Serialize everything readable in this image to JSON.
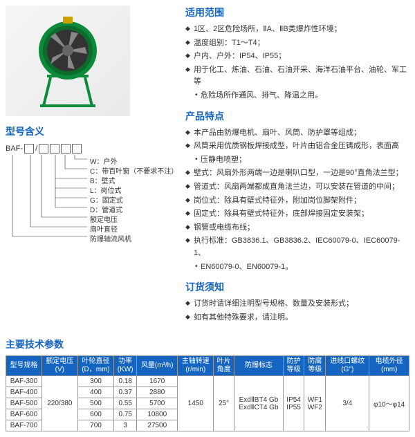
{
  "sections": {
    "scope": {
      "title": "适用范围",
      "items": [
        {
          "t": "1区、2区危险场所，ⅡA、ⅡB类爆炸性环境；",
          "sub": false
        },
        {
          "t": "温度组别：T1～T4；",
          "sub": false
        },
        {
          "t": "户内、户外：IP54、IP55；",
          "sub": false
        },
        {
          "t": "用于化工、炼油、石油、石油开采、海洋石油平台、油轮、军工等",
          "sub": false
        },
        {
          "t": "危险场所作通风、排气、降温之用。",
          "sub": true
        }
      ]
    },
    "features": {
      "title": "产品特点",
      "items": [
        {
          "t": "本产品由防爆电机、扇叶、风筒、防护罩等组成；",
          "sub": false
        },
        {
          "t": "风筒采用优质钢板焊接成型，叶片由铝合金压铸成形，表面高",
          "sub": false
        },
        {
          "t": "压静电喷塑；",
          "sub": true
        },
        {
          "t": "壁式：风扇外形两端一边是喇叭口型，一边是90°直角法兰型；",
          "sub": false
        },
        {
          "t": "管道式：风扇两端都成直角法兰边，可以安装在管道的中间；",
          "sub": false
        },
        {
          "t": "岗位式：除具有壁式特征外，附加岗位脚架附件；",
          "sub": false
        },
        {
          "t": "固定式：除具有壁式特征外，底部焊接固定安装架；",
          "sub": false
        },
        {
          "t": "钢管或电缆布线；",
          "sub": false
        },
        {
          "t": "执行标准：GB3836.1、GB3836.2、IEC60079-0、IEC60079-1、",
          "sub": false
        },
        {
          "t": "EN60079-0、EN60079-1。",
          "sub": true
        }
      ]
    },
    "order": {
      "title": "订货须知",
      "items": [
        {
          "t": "订货时请详细注明型号规格、数量及安装形式；",
          "sub": false
        },
        {
          "t": "如有其他特殊要求，请注明。",
          "sub": false
        }
      ]
    },
    "model": {
      "title": "型号含义",
      "base": "BAF-",
      "labels": [
        "W：户外",
        "C：带百叶窗（不要求不注）",
        "B：壁式",
        "L：岗位式",
        "G：固定式",
        "D：管道式",
        "额定电压",
        "扇叶直径",
        "防爆轴流风机"
      ]
    }
  },
  "params": {
    "title": "主要技术参数",
    "headers": [
      "型号规格",
      "额定电压\n(V)",
      "叶轮直径\n(D，mm)",
      "功率\n(KW)",
      "风量(m³/h)",
      "主轴转速\n(r/min)",
      "叶片\n角度",
      "防爆标志",
      "防护\n等级",
      "防腐\n等级",
      "进线口螺纹\n(G\")",
      "电缆外径\n(mm)"
    ],
    "rows": [
      [
        "BAF-300",
        "300",
        "0.18",
        "1670"
      ],
      [
        "BAF-400",
        "400",
        "0.37",
        "2880"
      ],
      [
        "BAF-500",
        "500",
        "0.55",
        "5700"
      ],
      [
        "BAF-600",
        "600",
        "0.75",
        "10800"
      ],
      [
        "BAF-700",
        "700",
        "3",
        "27500"
      ]
    ],
    "merged": {
      "voltage": "220/380",
      "speed": "1450",
      "angle": "25°",
      "explosion": "ExdⅡBT4 Gb\nExdⅡCT4 Gb",
      "protection": "IP54\nIP55",
      "corrosion": "WF1\nWF2",
      "thread": "3/4",
      "cable": "φ10～φ14"
    }
  }
}
